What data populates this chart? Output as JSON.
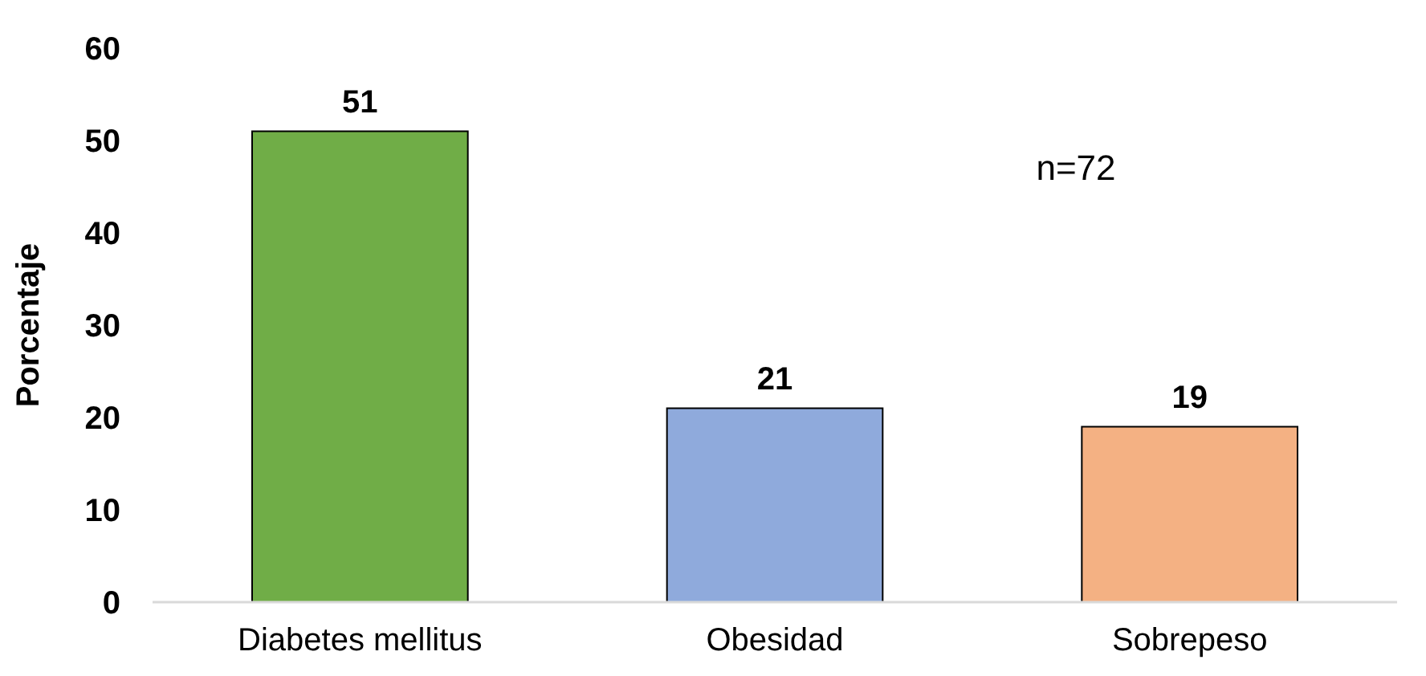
{
  "chart_data": {
    "type": "bar",
    "ylabel": "Porcentaje",
    "categories": [
      "Diabetes mellitus",
      "Obesidad",
      "Sobrepeso"
    ],
    "values": [
      51,
      21,
      19
    ],
    "colors": [
      "#70ad47",
      "#8faadc",
      "#f4b183"
    ],
    "ylim": [
      0,
      60
    ],
    "yticks": [
      0,
      10,
      20,
      30,
      40,
      50,
      60
    ],
    "grid": false,
    "data_labels": true,
    "annotations": [
      "n=72"
    ]
  }
}
